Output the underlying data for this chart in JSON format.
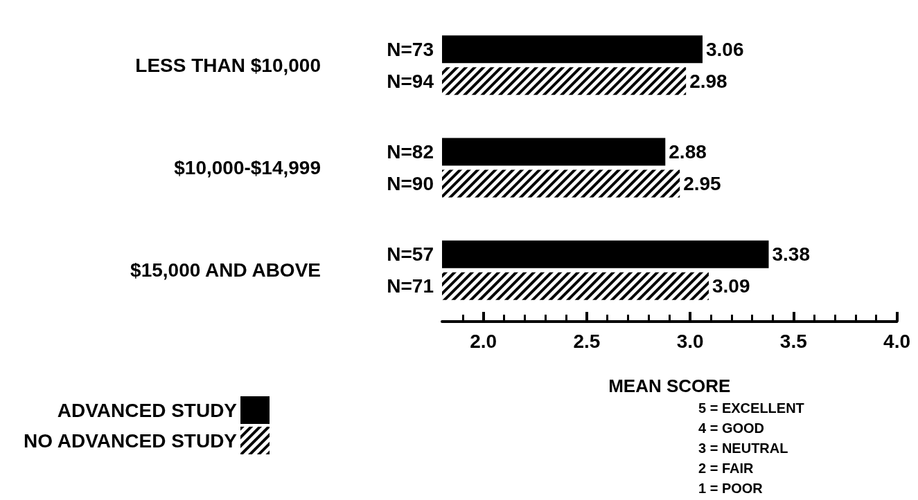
{
  "chart_data": {
    "type": "bar",
    "orientation": "horizontal",
    "categories": [
      "LESS THAN $10,000",
      "$10,000-$14,999",
      "$15,000 AND ABOVE"
    ],
    "series": [
      {
        "name": "ADVANCED STUDY",
        "color": "#000000",
        "values": [
          3.06,
          2.88,
          3.38
        ]
      },
      {
        "name": "NO ADVANCED STUDY",
        "color": "#ffffff",
        "values": [
          2.98,
          2.95,
          3.09
        ]
      }
    ],
    "xlim": [
      1.8,
      4.0
    ],
    "xticks": [
      {
        "value": 2,
        "label": "2.0"
      },
      2.5,
      {
        "value": 3,
        "label": "3.0"
      },
      3.5,
      {
        "value": 4,
        "label": "4.0"
      }
    ],
    "xlabel": "MEAN SCORE",
    "data_labels": true,
    "legend": "bottom left",
    "grid": false,
    "annotations": [
      "N=73",
      "N=94",
      "N=82",
      "N=90",
      "N=57",
      "N=71",
      "5 = EXCELLENT",
      "4 = GOOD",
      "3 = NEUTRAL",
      "2 = FAIR",
      "1 = POOR"
    ]
  }
}
